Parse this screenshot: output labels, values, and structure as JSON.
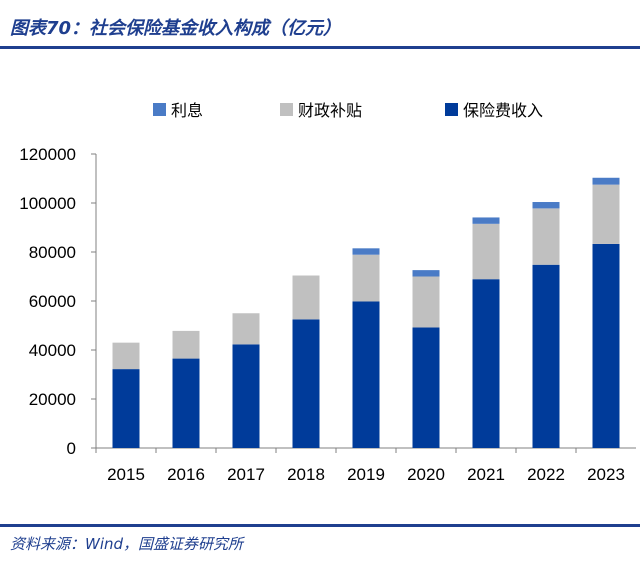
{
  "figure": {
    "title": "图表70：社会保险基金收入构成（亿元）",
    "source": "资料来源：Wind，国盛证券研究所"
  },
  "chart_data": {
    "type": "bar",
    "stacked": true,
    "title": "社会保险基金收入构成（亿元）",
    "xlabel": "",
    "ylabel": "",
    "categories": [
      "2015",
      "2016",
      "2017",
      "2018",
      "2019",
      "2020",
      "2021",
      "2022",
      "2023"
    ],
    "series": [
      {
        "name": "保险费收入",
        "color": "#003b9a",
        "values": [
          32200,
          36500,
          42300,
          52500,
          59800,
          49200,
          68900,
          74800,
          83300
        ]
      },
      {
        "name": "财政补贴",
        "color": "#c0c0c0",
        "values": [
          10800,
          11300,
          12700,
          17900,
          19100,
          20800,
          22600,
          23000,
          24200
        ]
      },
      {
        "name": "利息",
        "color": "#4a7bc6",
        "values": [
          0,
          0,
          0,
          0,
          2600,
          2600,
          2600,
          2600,
          2800
        ]
      }
    ],
    "legend": [
      "利息",
      "财政补贴",
      "保险费收入"
    ],
    "legend_position": "top",
    "yticks": [
      "0",
      "20000",
      "40000",
      "60000",
      "80000",
      "100000",
      "120000"
    ],
    "ylim": [
      0,
      120000
    ],
    "grid": false
  }
}
